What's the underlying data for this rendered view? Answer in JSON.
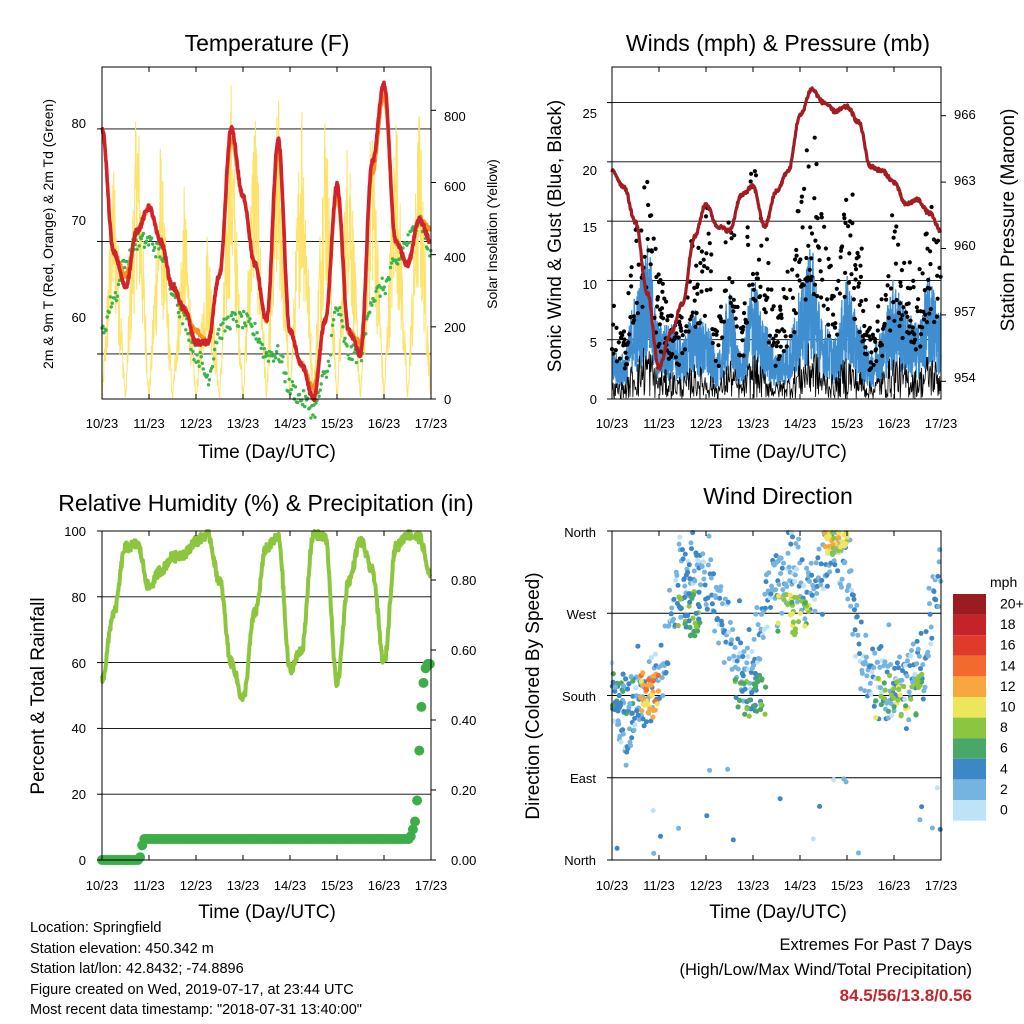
{
  "colors": {
    "red": "#d2232a",
    "orange": "#f7941d",
    "green": "#39b54a",
    "yellow": "#fde36b",
    "blue": "#3f8fd0",
    "black": "#000000",
    "maroon": "#a11d21",
    "rh_green": "#8cc63f",
    "precip_green": "#3cae49"
  },
  "x_ticks": [
    "10/23",
    "11/23",
    "12/23",
    "13/23",
    "14/23",
    "15/23",
    "16/23",
    "17/23"
  ],
  "xlabel": "Time (Day/UTC)",
  "panels": {
    "temperature": {
      "title": "Temperature (F)",
      "ylabel_left": "2m & 9m T (Red, Orange) & 2m Td (Green)",
      "ylabel_right": "Solar Insolation (Yellow)",
      "left_ticks": [
        "60",
        "70",
        "80"
      ],
      "right_ticks": [
        "0",
        "200",
        "400",
        "600",
        "800"
      ]
    },
    "winds": {
      "title": "Winds (mph) & Pressure (mb)",
      "ylabel_left": "Sonic Wind & Gust (Blue, Black)",
      "ylabel_right": "Station Pressure (Maroon)",
      "left_ticks": [
        "0",
        "5",
        "10",
        "15",
        "20",
        "25"
      ],
      "right_ticks": [
        "954",
        "957",
        "960",
        "963",
        "966"
      ]
    },
    "humidity": {
      "title": "Relative Humidity (%) & Precipitation (in)",
      "ylabel_left": "Percent & Total Rainfall",
      "left_ticks": [
        "0",
        "20",
        "40",
        "60",
        "80",
        "100"
      ],
      "right_ticks": [
        "0.00",
        "0.20",
        "0.40",
        "0.60",
        "0.80"
      ]
    },
    "direction": {
      "title": "Wind Direction",
      "ylabel_left": "Direction (Colored By Speed)",
      "left_ticks": [
        "North",
        "East",
        "South",
        "West",
        "North"
      ],
      "legend_title": "mph",
      "legend_labels": [
        "20+",
        "18",
        "16",
        "14",
        "12",
        "10",
        "8",
        "6",
        "4",
        "2",
        "0"
      ],
      "legend_colors": [
        "#9b1c1f",
        "#c4232a",
        "#e03a2b",
        "#f26a2e",
        "#f9a640",
        "#ece65c",
        "#8cc63f",
        "#4aa866",
        "#3d87c7",
        "#75b4e0",
        "#bfe3f6"
      ]
    }
  },
  "info": {
    "location": "Location: Springfield",
    "elevation": "Station elevation: 450.342 m",
    "latlon": "Station lat/lon: 42.8432; -74.8896",
    "created": "Figure created on Wed, 2019-07-17, at 23:44 UTC",
    "recent": "Most recent data timestamp: \"2018-07-31 13:40:00\""
  },
  "extremes": {
    "title": "Extremes For Past 7 Days",
    "subtitle": "(High/Low/Max Wind/Total Precipitation)",
    "values": "84.5/56/13.8/0.56"
  },
  "chart_data": [
    {
      "type": "line",
      "title": "Temperature (F)",
      "xlabel": "Time (Day/UTC)",
      "ylabel": "2m & 9m T (Red, Orange) & 2m Td (Green)",
      "y2label": "Solar Insolation (Yellow)",
      "x": [
        10.0,
        10.25,
        10.5,
        10.75,
        11.0,
        11.25,
        11.5,
        11.75,
        12.0,
        12.25,
        12.5,
        12.75,
        13.0,
        13.25,
        13.5,
        13.75,
        14.0,
        14.25,
        14.5,
        14.75,
        15.0,
        15.25,
        15.5,
        15.75,
        16.0,
        16.25,
        16.5,
        16.75,
        17.0
      ],
      "ylim": [
        56,
        85.5
      ],
      "y2lim": [
        0,
        920
      ],
      "grid": true,
      "series": [
        {
          "name": "2m T",
          "axis": "left",
          "values": [
            80,
            69,
            66,
            71,
            73,
            70,
            66,
            64,
            61,
            61,
            67,
            80,
            74,
            68,
            63,
            79,
            62,
            59,
            56,
            63,
            75,
            62,
            60,
            77,
            84,
            70,
            68,
            72,
            70
          ]
        },
        {
          "name": "9m T",
          "axis": "left",
          "values": [
            80,
            69,
            67,
            71,
            73,
            70,
            66,
            64,
            62,
            61,
            67,
            79,
            74,
            68,
            63,
            78,
            62,
            59,
            57,
            63,
            74,
            62,
            61,
            76,
            83,
            70,
            68,
            72,
            71
          ]
        },
        {
          "name": "2m Td",
          "axis": "left",
          "values": [
            62,
            65,
            68,
            70,
            70,
            69,
            66,
            63,
            60,
            58,
            62,
            63,
            63,
            62,
            60,
            60,
            57,
            56,
            55,
            58,
            64,
            60,
            60,
            65,
            66,
            68,
            70,
            72,
            69
          ]
        },
        {
          "name": "Solar Insolation",
          "axis": "right",
          "values": [
            0,
            700,
            0,
            900,
            0,
            750,
            0,
            600,
            0,
            500,
            0,
            900,
            0,
            880,
            0,
            900,
            0,
            900,
            0,
            880,
            0,
            850,
            0,
            880,
            0,
            880,
            0,
            850,
            0
          ]
        }
      ]
    },
    {
      "type": "line",
      "title": "Winds (mph) & Pressure (mb)",
      "xlabel": "Time (Day/UTC)",
      "ylabel": "Sonic Wind & Gust (Blue, Black)",
      "y2label": "Station Pressure (Maroon)",
      "x": [
        10.0,
        10.25,
        10.5,
        10.75,
        11.0,
        11.25,
        11.5,
        11.75,
        12.0,
        12.25,
        12.5,
        12.75,
        13.0,
        13.25,
        13.5,
        13.75,
        14.0,
        14.25,
        14.5,
        14.75,
        15.0,
        15.25,
        15.5,
        15.75,
        16.0,
        16.25,
        16.5,
        16.75,
        17.0
      ],
      "ylim": [
        0,
        28
      ],
      "y2lim": [
        953.2,
        968.2
      ],
      "grid": true,
      "series": [
        {
          "name": "Sonic Wind",
          "axis": "left",
          "values": [
            3,
            3,
            7,
            10,
            5,
            5,
            4,
            6,
            5,
            3,
            7,
            3,
            8,
            5,
            3,
            4,
            7,
            10,
            5,
            4,
            8,
            5,
            3,
            5,
            8,
            6,
            5,
            8,
            6
          ]
        },
        {
          "name": "Gust",
          "axis": "left",
          "values": [
            7,
            5,
            12,
            18,
            9,
            6,
            6,
            12,
            14,
            6,
            14,
            7,
            17,
            12,
            6,
            9,
            14,
            20,
            13,
            8,
            17,
            12,
            5,
            8,
            14,
            10,
            9,
            14,
            12
          ]
        },
        {
          "name": "Station Pressure",
          "axis": "right",
          "values": [
            963.5,
            962.8,
            961.2,
            958.0,
            954.6,
            956.2,
            957.5,
            960.5,
            962.0,
            961.0,
            960.8,
            962.4,
            962.8,
            961.0,
            962.6,
            963.5,
            966.0,
            967.2,
            966.6,
            966.2,
            966.4,
            965.7,
            963.7,
            963.5,
            963.0,
            962.0,
            962.2,
            961.6,
            960.8
          ]
        }
      ]
    },
    {
      "type": "line",
      "title": "Relative Humidity (%) & Precipitation (in)",
      "xlabel": "Time (Day/UTC)",
      "ylabel": "Percent & Total Rainfall",
      "ylim": [
        0,
        100
      ],
      "y2lim": [
        0,
        0.94
      ],
      "grid": true,
      "series": [
        {
          "name": "Relative Humidity",
          "axis": "left",
          "x": [
            10.0,
            10.25,
            10.5,
            10.75,
            11.0,
            11.25,
            11.5,
            11.75,
            12.0,
            12.25,
            12.5,
            12.75,
            13.0,
            13.25,
            13.5,
            13.75,
            14.0,
            14.25,
            14.5,
            14.75,
            15.0,
            15.25,
            15.5,
            15.75,
            16.0,
            16.25,
            16.5,
            16.75,
            17.0
          ],
          "values": [
            55,
            75,
            95,
            96,
            83,
            88,
            92,
            93,
            97,
            99,
            85,
            60,
            49,
            75,
            95,
            98,
            58,
            64,
            99,
            98,
            54,
            85,
            97,
            88,
            60,
            95,
            99,
            98,
            86
          ]
        },
        {
          "name": "Total Precipitation",
          "axis": "right",
          "x": [
            10.0,
            10.8,
            10.85,
            10.9,
            16.55,
            16.6,
            16.68,
            16.72,
            16.76,
            16.8,
            16.85,
            16.9,
            17.0
          ],
          "values": [
            0.0,
            0.0,
            0.04,
            0.06,
            0.06,
            0.08,
            0.12,
            0.2,
            0.35,
            0.45,
            0.52,
            0.56,
            0.56
          ]
        }
      ]
    },
    {
      "type": "scatter",
      "title": "Wind Direction",
      "xlabel": "Time (Day/UTC)",
      "ylabel": "Direction (Colored By Speed)",
      "y_categories": [
        "North",
        "East",
        "South",
        "West",
        "North"
      ],
      "colorbar_label": "mph",
      "colorbar_ticks": [
        "0",
        "2",
        "4",
        "6",
        "8",
        "10",
        "12",
        "14",
        "16",
        "18",
        "20+"
      ],
      "clusters": [
        {
          "t_start": 10.0,
          "t_end": 10.6,
          "dir": "South",
          "speed": 4
        },
        {
          "t_start": 10.6,
          "t_end": 11.0,
          "dir": "South",
          "speed": 12
        },
        {
          "t_start": 11.4,
          "t_end": 11.9,
          "dir": "West",
          "speed": 6
        },
        {
          "t_start": 12.6,
          "t_end": 13.3,
          "dir": "South",
          "speed": 6
        },
        {
          "t_start": 13.5,
          "t_end": 14.2,
          "dir": "West",
          "speed": 8
        },
        {
          "t_start": 14.5,
          "t_end": 15.0,
          "dir": "North",
          "speed": 10
        },
        {
          "t_start": 15.6,
          "t_end": 16.6,
          "dir": "South",
          "speed": 8
        }
      ]
    }
  ]
}
